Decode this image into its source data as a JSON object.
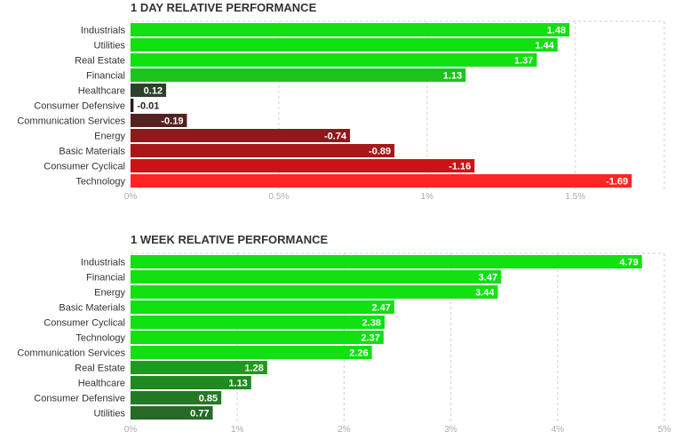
{
  "charts": [
    {
      "title": "1 DAY RELATIVE PERFORMANCE",
      "type": "bar",
      "orientation": "horizontal",
      "categories": [
        "Industrials",
        "Utilities",
        "Real Estate",
        "Financial",
        "Healthcare",
        "Consumer Defensive",
        "Communication Services",
        "Energy",
        "Basic Materials",
        "Consumer Cyclical",
        "Technology"
      ],
      "values": [
        1.48,
        1.44,
        1.37,
        1.13,
        0.12,
        -0.01,
        -0.19,
        -0.74,
        -0.89,
        -1.16,
        -1.69
      ],
      "value_labels": [
        "1.48",
        "1.44",
        "1.37",
        "1.13",
        "0.12",
        "-0.01",
        "-0.19",
        "-0.74",
        "-0.89",
        "-1.16",
        "-1.69"
      ],
      "colors": [
        "#11e011",
        "#11e011",
        "#11e011",
        "#1cc41c",
        "#2e3f2e",
        "#2a1a1a",
        "#552222",
        "#8b1a1a",
        "#a81818",
        "#cc1212",
        "#ff2525"
      ],
      "xlim": [
        0,
        1.8
      ],
      "ticks": [
        0,
        0.5,
        1,
        1.5
      ],
      "tick_labels": [
        "0%",
        "0.5%",
        "1%",
        "1.5%"
      ]
    },
    {
      "title": "1 WEEK RELATIVE PERFORMANCE",
      "type": "bar",
      "orientation": "horizontal",
      "categories": [
        "Industrials",
        "Financial",
        "Energy",
        "Basic Materials",
        "Consumer Cyclical",
        "Technology",
        "Communication Services",
        "Real Estate",
        "Healthcare",
        "Consumer Defensive",
        "Utilities"
      ],
      "values": [
        4.79,
        3.47,
        3.44,
        2.47,
        2.38,
        2.37,
        2.26,
        1.28,
        1.13,
        0.85,
        0.77
      ],
      "value_labels": [
        "4.79",
        "3.47",
        "3.44",
        "2.47",
        "2.38",
        "2.37",
        "2.26",
        "1.28",
        "1.13",
        "0.85",
        "0.77"
      ],
      "colors": [
        "#11e011",
        "#11e011",
        "#11e011",
        "#11e011",
        "#11e011",
        "#11e011",
        "#11e011",
        "#1f9a1f",
        "#1f8a1f",
        "#237a23",
        "#266a26"
      ],
      "xlim": [
        0,
        5
      ],
      "ticks": [
        0,
        1,
        2,
        3,
        4,
        5
      ],
      "tick_labels": [
        "0%",
        "1%",
        "2%",
        "3%",
        "4%",
        "5%"
      ]
    }
  ]
}
